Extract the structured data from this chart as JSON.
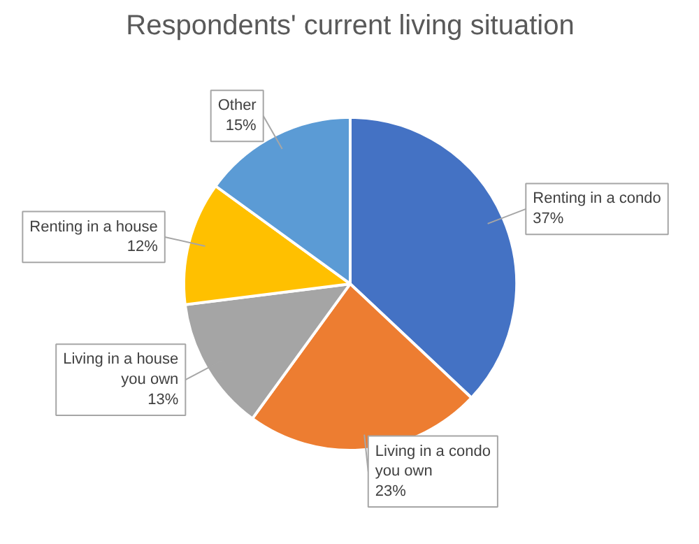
{
  "chart_data": {
    "type": "pie",
    "title": "Respondents' current living situation",
    "categories": [
      "Renting in a condo",
      "Living in a condo you own",
      "Living in a house you own",
      "Renting in a house",
      "Other"
    ],
    "values": [
      37,
      23,
      13,
      12,
      15
    ],
    "value_labels": [
      "37%",
      "23%",
      "13%",
      "12%",
      "15%"
    ],
    "colors": [
      "#4472c4",
      "#ed7d31",
      "#a5a5a5",
      "#ffc000",
      "#5b9bd5"
    ]
  }
}
